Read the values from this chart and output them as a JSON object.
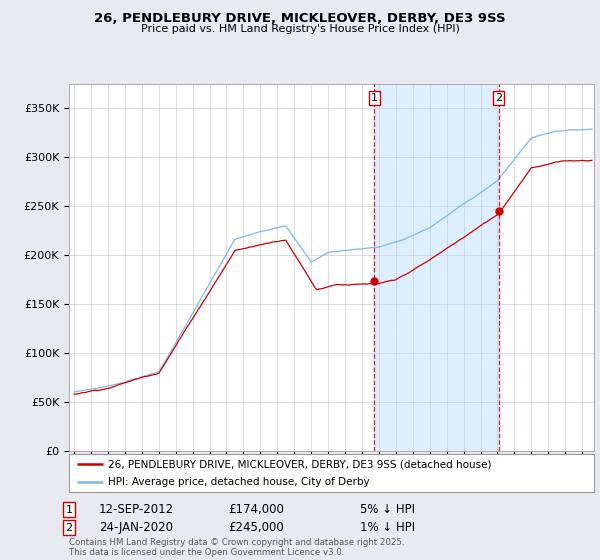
{
  "title_line1": "26, PENDLEBURY DRIVE, MICKLEOVER, DERBY, DE3 9SS",
  "title_line2": "Price paid vs. HM Land Registry's House Price Index (HPI)",
  "legend_label_red": "26, PENDLEBURY DRIVE, MICKLEOVER, DERBY, DE3 9SS (detached house)",
  "legend_label_blue": "HPI: Average price, detached house, City of Derby",
  "annotation1_date": "12-SEP-2012",
  "annotation1_price": "£174,000",
  "annotation1_note": "5% ↓ HPI",
  "annotation2_date": "24-JAN-2020",
  "annotation2_price": "£245,000",
  "annotation2_note": "1% ↓ HPI",
  "copyright_text": "Contains HM Land Registry data © Crown copyright and database right 2025.\nThis data is licensed under the Open Government Licence v3.0.",
  "background_color": "#e8eaf0",
  "plot_background": "#ffffff",
  "shade_color": "#ddeeff",
  "ylim": [
    0,
    375000
  ],
  "yticks": [
    0,
    50000,
    100000,
    150000,
    200000,
    250000,
    300000,
    350000
  ],
  "marker1_x": 2012.71,
  "marker1_y": 174000,
  "marker2_x": 2020.07,
  "marker2_y": 245000,
  "vline1_x": 2012.71,
  "vline2_x": 2020.07,
  "red_color": "#cc0000",
  "blue_color": "#80b8e8",
  "xlim_left": 1994.7,
  "xlim_right": 2025.7
}
